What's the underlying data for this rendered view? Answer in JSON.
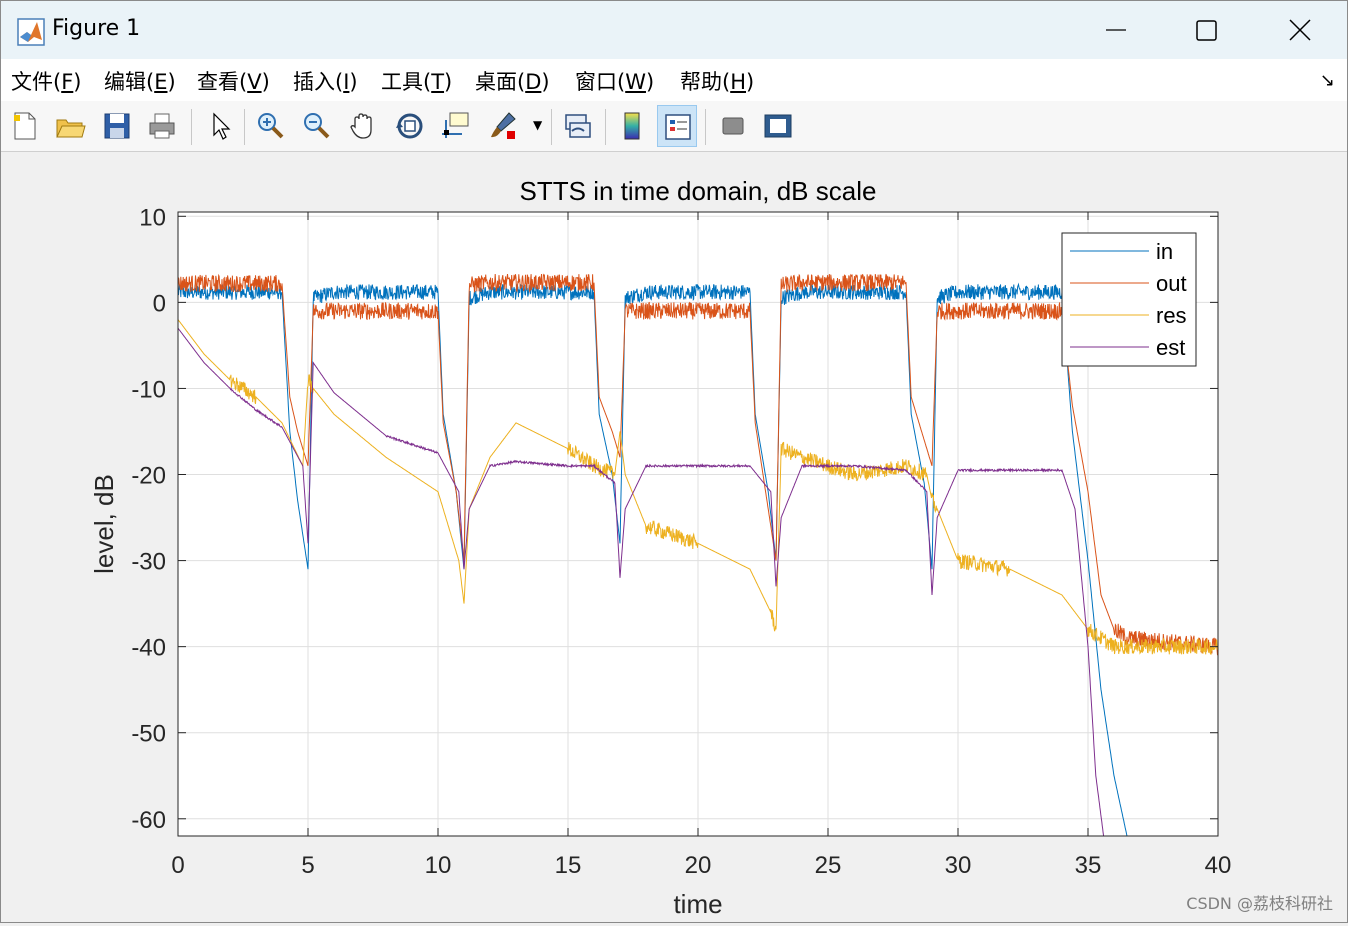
{
  "window": {
    "title": "Figure 1"
  },
  "menu": [
    {
      "label": "文件(",
      "key": "F",
      "tail": ")"
    },
    {
      "label": "编辑(",
      "key": "E",
      "tail": ")"
    },
    {
      "label": "查看(",
      "key": "V",
      "tail": ")"
    },
    {
      "label": "插入(",
      "key": "I",
      "tail": ")"
    },
    {
      "label": "工具(",
      "key": "T",
      "tail": ")"
    },
    {
      "label": "桌面(",
      "key": "D",
      "tail": ")"
    },
    {
      "label": "窗口(",
      "key": "W",
      "tail": ")"
    },
    {
      "label": "帮助(",
      "key": "H",
      "tail": ")"
    }
  ],
  "toolbar": [
    "new-figure-icon",
    "open-file-icon",
    "save-icon",
    "print-icon",
    "pointer-icon",
    "zoom-in-icon",
    "zoom-out-icon",
    "pan-hand-icon",
    "rotate-3d-icon",
    "data-cursor-icon",
    "brush-icon",
    "link-plot-icon",
    "colorbar-icon",
    "legend-icon",
    "hide-plot-tools-icon",
    "show-plot-tools-icon"
  ],
  "watermark": "CSDN @荔枝科研社",
  "chart_data": {
    "type": "line",
    "title": "STTS in time domain, dB scale",
    "xlabel": "time",
    "ylabel": "level, dB",
    "xlim": [
      0,
      40
    ],
    "ylim": [
      -62,
      10.5
    ],
    "xticks": [
      0,
      5,
      10,
      15,
      20,
      25,
      30,
      35,
      40
    ],
    "yticks": [
      10,
      0,
      -10,
      -20,
      -30,
      -40,
      -50,
      -60
    ],
    "grid": true,
    "legend_position": "top-right",
    "series": [
      {
        "name": "in",
        "color": "#0072BD",
        "x": [
          0,
          4,
          4.3,
          4.6,
          5.0,
          5.2,
          6,
          10,
          10.2,
          10.7,
          11.0,
          11.2,
          12,
          16,
          16.2,
          16.7,
          17.0,
          17.2,
          18,
          22,
          22.2,
          22.7,
          23.0,
          23.2,
          24,
          28,
          28.2,
          28.7,
          29.0,
          29.2,
          30,
          34,
          34.4,
          35.0,
          35.5,
          36.0,
          36.5
        ],
        "y": [
          1.2,
          1.2,
          -15,
          -23,
          -31,
          0.5,
          1.2,
          1.2,
          -13,
          -22,
          -31,
          0.5,
          1.2,
          1.2,
          -13,
          -20,
          -28,
          0.5,
          1.2,
          1.2,
          -13,
          -22,
          -30,
          0.5,
          1.2,
          1.2,
          -13,
          -21,
          -31,
          0.5,
          1.2,
          1.2,
          -15,
          -30,
          -45,
          -55,
          -62
        ]
      },
      {
        "name": "out",
        "color": "#D95319",
        "x": [
          0,
          4,
          4.3,
          4.6,
          5.0,
          5.2,
          6,
          10,
          10.2,
          10.7,
          11.0,
          11.2,
          12,
          16,
          16.2,
          16.7,
          17.0,
          17.2,
          18,
          22,
          22.2,
          22.7,
          23.0,
          23.2,
          24,
          28,
          28.2,
          28.7,
          29.0,
          29.2,
          30,
          34,
          34.4,
          35.0,
          35.5,
          36.0,
          36.5,
          40
        ],
        "y": [
          2.2,
          2.2,
          -11,
          -15,
          -19,
          -1.0,
          -1.0,
          -1.0,
          -14,
          -22,
          -30,
          2.0,
          2.3,
          2.3,
          -11,
          -15,
          -18,
          -1.0,
          -1.0,
          -1.0,
          -14,
          -24,
          -30,
          2.0,
          2.3,
          2.3,
          -11,
          -16,
          -19,
          -1.0,
          -1.0,
          -1.0,
          -12,
          -22,
          -34,
          -38,
          -39,
          -40
        ]
      },
      {
        "name": "res",
        "color": "#EDB120",
        "x": [
          0,
          1,
          2,
          3,
          4,
          4.8,
          5.0,
          5.2,
          6,
          8,
          10,
          10.8,
          11.0,
          11.2,
          12,
          13,
          15,
          16,
          16.8,
          17.0,
          17.2,
          18,
          20,
          22,
          22.8,
          23.0,
          23.2,
          24,
          26,
          28,
          28.8,
          29.0,
          29.2,
          30,
          32,
          34,
          35.0,
          36,
          38,
          40
        ],
        "y": [
          -2,
          -6,
          -9,
          -11,
          -14,
          -19,
          -9,
          -10,
          -13,
          -18,
          -22,
          -30,
          -35,
          -24,
          -18,
          -14,
          -17,
          -19,
          -20,
          -15,
          -20,
          -26,
          -28,
          -31,
          -36,
          -38,
          -17,
          -18,
          -20,
          -19,
          -20,
          -23,
          -24,
          -30,
          -31,
          -34,
          -38,
          -40,
          -40,
          -40
        ]
      },
      {
        "name": "est",
        "color": "#7E2F8E",
        "x": [
          0,
          1,
          2,
          3,
          4,
          4.8,
          5.0,
          5.2,
          6,
          8,
          10,
          10.8,
          11.0,
          11.2,
          12,
          13,
          15,
          16,
          16.8,
          17.0,
          17.2,
          18,
          20,
          22,
          22.8,
          23.0,
          23.2,
          24,
          26,
          28,
          28.8,
          29.0,
          29.2,
          30,
          32,
          34,
          34.5,
          35.0,
          35.3,
          35.6
        ],
        "y": [
          -3,
          -7,
          -10,
          -12.5,
          -14.5,
          -19,
          -28,
          -7,
          -10.5,
          -15.5,
          -17.5,
          -22,
          -31,
          -24,
          -19,
          -18.5,
          -19,
          -19,
          -21,
          -32,
          -24,
          -19,
          -19,
          -19,
          -22,
          -33,
          -25,
          -19,
          -19,
          -19.5,
          -22,
          -34,
          -25,
          -19.5,
          -19.5,
          -19.5,
          -24,
          -40,
          -55,
          -62
        ]
      }
    ]
  }
}
